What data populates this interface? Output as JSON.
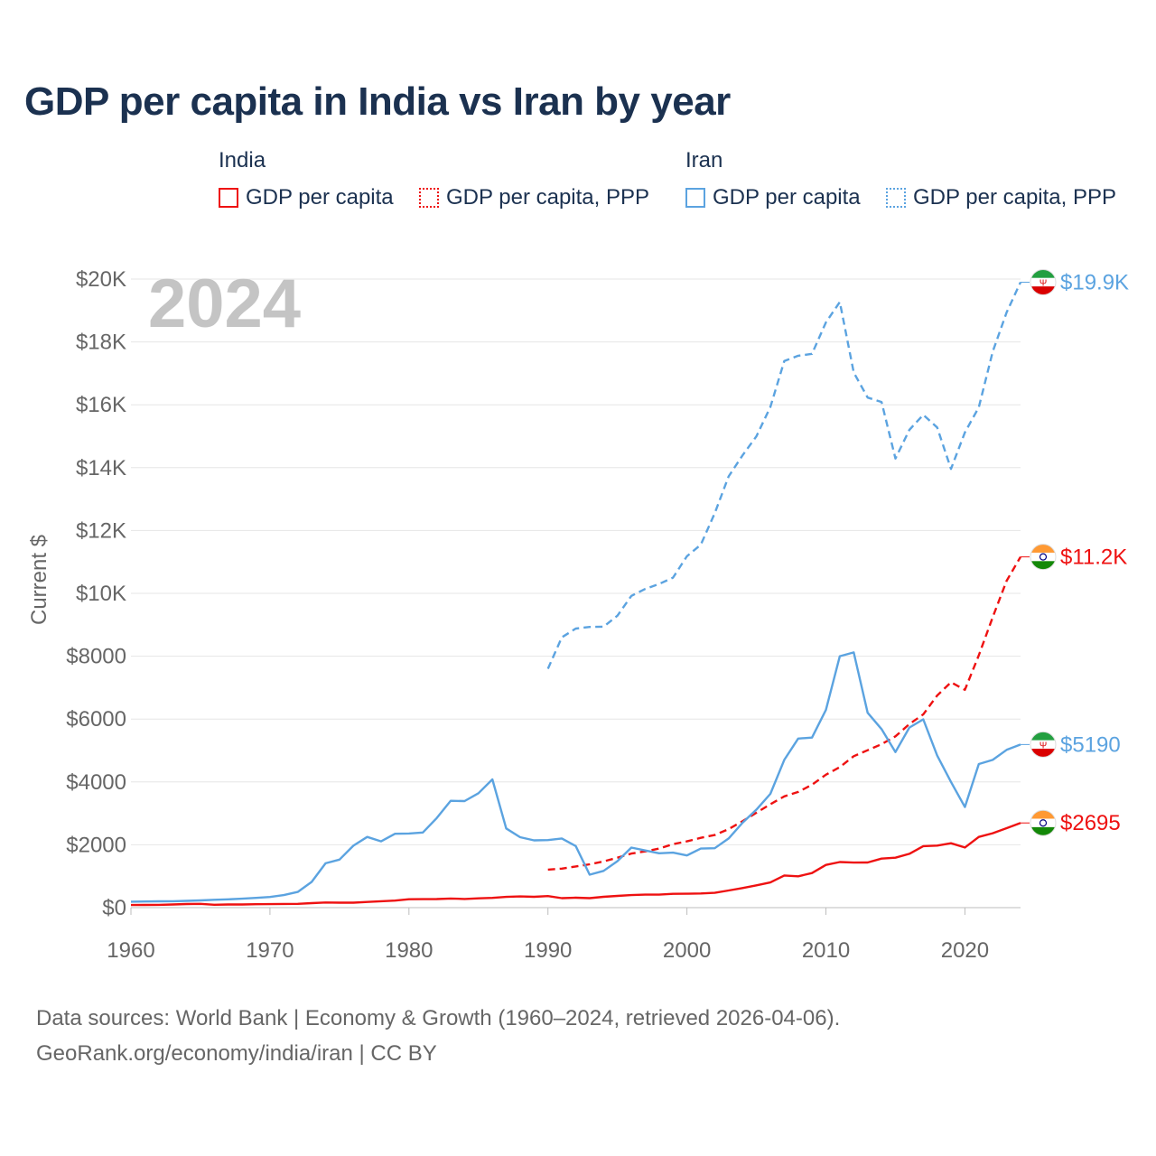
{
  "title": "GDP per capita in India vs Iran by year",
  "legend": {
    "groups": [
      {
        "name": "India",
        "items": [
          {
            "label": "GDP per capita",
            "style": "solid",
            "color": "#ee1111"
          },
          {
            "label": "GDP per capita, PPP",
            "style": "dotted",
            "color": "#ee1111"
          }
        ]
      },
      {
        "name": "Iran",
        "items": [
          {
            "label": "GDP per capita",
            "style": "solid",
            "color": "#5ba3e0"
          },
          {
            "label": "GDP per capita, PPP",
            "style": "dotted",
            "color": "#5ba3e0"
          }
        ]
      }
    ]
  },
  "year_watermark": "2024",
  "footer": {
    "sources": "Data sources: World Bank | Economy & Growth (1960–2024, retrieved 2026-04-06).",
    "link": "GeoRank.org/economy/india/iran | CC BY"
  },
  "chart_data": {
    "type": "line",
    "ylabel": "Current $",
    "xlabel": "",
    "xlim": [
      1960,
      2024
    ],
    "ylim": [
      0,
      20000
    ],
    "grid": true,
    "x_ticks": [
      1960,
      1970,
      1980,
      1990,
      2000,
      2010,
      2020
    ],
    "x_tick_labels": [
      "1960",
      "1970",
      "1980",
      "1990",
      "2000",
      "2010",
      "2020"
    ],
    "y_ticks": [
      0,
      2000,
      4000,
      6000,
      8000,
      10000,
      12000,
      14000,
      16000,
      18000,
      20000
    ],
    "y_tick_labels": [
      "$0",
      "$2000",
      "$4000",
      "$6000",
      "$8000",
      "$10K",
      "$12K",
      "$14K",
      "$16K",
      "$18K",
      "$20K"
    ],
    "series": [
      {
        "name": "India GDP per capita",
        "country": "India",
        "style": "solid",
        "color": "#ee1111",
        "end_label": "$2695",
        "flag": "india-flag-icon",
        "x": [
          1960,
          1961,
          1962,
          1963,
          1964,
          1965,
          1966,
          1967,
          1968,
          1969,
          1970,
          1971,
          1972,
          1973,
          1974,
          1975,
          1976,
          1977,
          1978,
          1979,
          1980,
          1981,
          1982,
          1983,
          1984,
          1985,
          1986,
          1987,
          1988,
          1989,
          1990,
          1991,
          1992,
          1993,
          1994,
          1995,
          1996,
          1997,
          1998,
          1999,
          2000,
          2001,
          2002,
          2003,
          2004,
          2005,
          2006,
          2007,
          2008,
          2009,
          2010,
          2011,
          2012,
          2013,
          2014,
          2015,
          2016,
          2017,
          2018,
          2019,
          2020,
          2021,
          2022,
          2023,
          2024
        ],
        "y": [
          83,
          86,
          90,
          102,
          116,
          120,
          92,
          100,
          100,
          109,
          112,
          118,
          122,
          143,
          163,
          157,
          158,
          182,
          204,
          223,
          267,
          271,
          274,
          291,
          277,
          296,
          310,
          341,
          355,
          346,
          368,
          303,
          317,
          302,
          346,
          374,
          400,
          415,
          413,
          441,
          443,
          452,
          471,
          546,
          624,
          710,
          802,
          1023,
          998,
          1102,
          1358,
          1450,
          1434,
          1438,
          1560,
          1590,
          1714,
          1958,
          1974,
          2050,
          1913,
          2250,
          2367,
          2530,
          2695
        ]
      },
      {
        "name": "India GDP per capita, PPP",
        "country": "India",
        "style": "dotted",
        "color": "#ee1111",
        "end_label": "$11.2K",
        "flag": "india-flag-icon",
        "x": [
          1990,
          1991,
          1992,
          1993,
          1994,
          1995,
          1996,
          1997,
          1998,
          1999,
          2000,
          2001,
          2002,
          2003,
          2004,
          2005,
          2006,
          2007,
          2008,
          2009,
          2010,
          2011,
          2012,
          2013,
          2014,
          2015,
          2016,
          2017,
          2018,
          2019,
          2020,
          2021,
          2022,
          2023,
          2024
        ],
        "y": [
          1210,
          1240,
          1310,
          1380,
          1470,
          1590,
          1720,
          1790,
          1880,
          2020,
          2110,
          2220,
          2310,
          2500,
          2750,
          3020,
          3290,
          3540,
          3680,
          3910,
          4230,
          4470,
          4820,
          5010,
          5200,
          5450,
          5840,
          6150,
          6750,
          7170,
          6930,
          8030,
          9240,
          10400,
          11160
        ]
      },
      {
        "name": "Iran GDP per capita",
        "country": "Iran",
        "style": "solid",
        "color": "#5ba3e0",
        "end_label": "$5190",
        "flag": "iran-flag-icon",
        "x": [
          1960,
          1961,
          1962,
          1963,
          1964,
          1965,
          1966,
          1967,
          1968,
          1969,
          1970,
          1971,
          1972,
          1973,
          1974,
          1975,
          1976,
          1977,
          1978,
          1979,
          1980,
          1981,
          1982,
          1983,
          1984,
          1985,
          1986,
          1987,
          1988,
          1989,
          1990,
          1991,
          1992,
          1993,
          1994,
          1995,
          1996,
          1997,
          1998,
          1999,
          2000,
          2001,
          2002,
          2003,
          2004,
          2005,
          2006,
          2007,
          2008,
          2009,
          2010,
          2011,
          2012,
          2013,
          2014,
          2015,
          2016,
          2017,
          2018,
          2019,
          2020,
          2021,
          2022,
          2023,
          2024
        ],
        "y": [
          190,
          195,
          200,
          205,
          215,
          230,
          250,
          265,
          285,
          310,
          340,
          400,
          500,
          820,
          1410,
          1530,
          1970,
          2250,
          2110,
          2350,
          2360,
          2390,
          2850,
          3400,
          3390,
          3640,
          4080,
          2520,
          2240,
          2140,
          2150,
          2200,
          1960,
          1050,
          1170,
          1480,
          1910,
          1820,
          1730,
          1750,
          1660,
          1880,
          1890,
          2200,
          2700,
          3120,
          3620,
          4700,
          5380,
          5410,
          6290,
          8000,
          8120,
          6200,
          5680,
          4950,
          5730,
          5990,
          4840,
          4000,
          3200,
          4570,
          4700,
          5020,
          5190
        ]
      },
      {
        "name": "Iran GDP per capita, PPP",
        "country": "Iran",
        "style": "dotted",
        "color": "#5ba3e0",
        "end_label": "$19.9K",
        "flag": "iran-flag-icon",
        "x": [
          1990,
          1991,
          1992,
          1993,
          1994,
          1995,
          1996,
          1997,
          1998,
          1999,
          2000,
          2001,
          2002,
          2003,
          2004,
          2005,
          2006,
          2007,
          2008,
          2009,
          2010,
          2011,
          2012,
          2013,
          2014,
          2015,
          2016,
          2017,
          2018,
          2019,
          2020,
          2021,
          2022,
          2023,
          2024
        ],
        "y": [
          7600,
          8600,
          8880,
          8930,
          8940,
          9290,
          9920,
          10140,
          10300,
          10500,
          11180,
          11550,
          12550,
          13720,
          14390,
          15000,
          15930,
          17390,
          17560,
          17620,
          18620,
          19270,
          17030,
          16230,
          16090,
          14290,
          15200,
          15680,
          15280,
          13960,
          15120,
          15920,
          17690,
          18940,
          19900
        ]
      }
    ]
  }
}
